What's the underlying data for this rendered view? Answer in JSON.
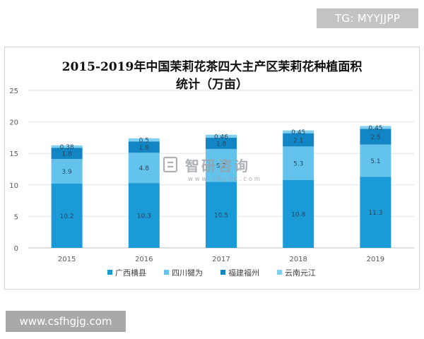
{
  "watermarks": {
    "top": "TG: MYYJJPP",
    "bottom": "www.csfhgjg.com",
    "center_cn": "智研咨询",
    "center_url": "w w w . c h y x x . c o m"
  },
  "chart_data": {
    "type": "bar",
    "stacked": true,
    "title_line1": "2015-2019年中国茉莉花茶四大主产区茉莉花种植面积",
    "title_line2": "统计（万亩）",
    "categories": [
      "2015",
      "2016",
      "2017",
      "2018",
      "2019"
    ],
    "series": [
      {
        "name": "广西横县",
        "values": [
          10.2,
          10.3,
          10.5,
          10.8,
          11.3
        ],
        "labels": [
          "10.2",
          "10.3",
          "10.5",
          "10.8",
          "11.3"
        ],
        "color": "#1a9ad6"
      },
      {
        "name": "四川犍为",
        "values": [
          3.9,
          4.8,
          5.2,
          5.3,
          5.1
        ],
        "labels": [
          "3.9",
          "4.8",
          "5.2",
          "5.3",
          "5.1"
        ],
        "color": "#64c3ec"
      },
      {
        "name": "福建福州",
        "values": [
          1.8,
          1.8,
          1.8,
          2.1,
          2.5
        ],
        "labels": [
          "1.8",
          "1.8",
          "1.8",
          "2.1",
          "2.5"
        ],
        "color": "#1286c4"
      },
      {
        "name": "云南元江",
        "values": [
          0.38,
          0.5,
          0.46,
          0.45,
          0.45
        ],
        "labels": [
          "0.38",
          "0.5",
          "0.46",
          "0.45",
          "0.45"
        ],
        "color": "#7fd0f0"
      }
    ],
    "yticks": [
      "0",
      "5",
      "10",
      "15",
      "20",
      "25"
    ],
    "ylim": [
      0,
      25
    ],
    "grid": true,
    "legend_position": "bottom"
  }
}
